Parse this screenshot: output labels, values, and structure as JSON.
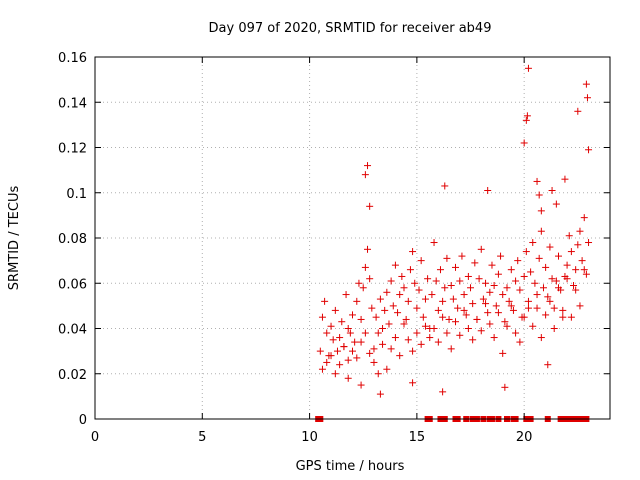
{
  "chart_data": {
    "type": "scatter",
    "title": "Day 097 of 2020, SRMTID for receiver ab49",
    "xlabel": "GPS time / hours",
    "ylabel": "SRMTID / TECUs",
    "xlim": [
      0,
      24
    ],
    "ylim": [
      0,
      0.16
    ],
    "x_ticks": [
      0,
      5,
      10,
      15,
      20
    ],
    "x_tick_labels": [
      "0",
      "5",
      "10",
      "15",
      "20"
    ],
    "y_ticks": [
      0,
      0.02,
      0.04,
      0.06,
      0.08,
      0.1,
      0.12,
      0.14,
      0.16
    ],
    "y_tick_labels": [
      "0",
      "0.02",
      "0.04",
      "0.06",
      "0.08",
      "0.1",
      "0.12",
      "0.14",
      "0.16"
    ],
    "grid": true,
    "marker": "+",
    "color": "#e00000",
    "series": [
      {
        "name": "SRMTID",
        "x": [
          10.5,
          10.6,
          10.7,
          10.8,
          10.9,
          11.0,
          11.1,
          11.2,
          11.3,
          11.4,
          11.5,
          11.6,
          11.7,
          11.8,
          11.9,
          12.0,
          12.1,
          12.2,
          12.3,
          12.4,
          12.5,
          12.6,
          12.7,
          12.8,
          12.9,
          13.0,
          13.1,
          13.2,
          13.3,
          13.4,
          13.5,
          13.6,
          13.7,
          13.8,
          13.9,
          14.0,
          14.1,
          14.2,
          14.3,
          14.4,
          14.5,
          14.6,
          14.7,
          14.8,
          14.9,
          15.0,
          15.1,
          15.2,
          15.3,
          15.4,
          15.5,
          15.6,
          15.7,
          15.8,
          15.9,
          16.0,
          16.1,
          16.2,
          16.3,
          16.4,
          16.5,
          16.6,
          16.7,
          16.8,
          16.9,
          17.0,
          17.1,
          17.2,
          17.3,
          17.4,
          17.5,
          17.6,
          17.7,
          17.8,
          17.9,
          18.0,
          18.1,
          18.2,
          18.3,
          18.4,
          18.5,
          18.6,
          18.7,
          18.8,
          18.9,
          19.0,
          19.1,
          19.2,
          19.3,
          19.4,
          19.5,
          19.6,
          19.7,
          19.8,
          19.9,
          20.0,
          20.1,
          20.2,
          20.3,
          20.4,
          20.5,
          20.6,
          20.7,
          20.8,
          20.9,
          21.0,
          21.1,
          21.2,
          21.3,
          21.4,
          21.5,
          21.6,
          21.7,
          21.8,
          21.9,
          22.0,
          22.1,
          22.2,
          22.3,
          22.4,
          22.5,
          22.6,
          22.7,
          22.8,
          22.9,
          23.0,
          10.6,
          10.8,
          11.0,
          11.2,
          11.4,
          11.6,
          11.8,
          12.0,
          12.2,
          12.4,
          12.6,
          12.8,
          13.0,
          13.2,
          13.4,
          13.6,
          13.8,
          14.0,
          14.2,
          14.4,
          14.6,
          14.8,
          15.0,
          15.2,
          15.4,
          15.6,
          15.8,
          16.0,
          16.2,
          16.4,
          16.6,
          16.8,
          17.0,
          17.2,
          17.4,
          17.6,
          17.8,
          18.0,
          18.2,
          18.4,
          18.6,
          18.8,
          19.0,
          19.2,
          19.4,
          19.6,
          19.8,
          20.0,
          20.2,
          20.4,
          20.6,
          20.8,
          21.0,
          21.2,
          21.4,
          21.6,
          21.8,
          22.0,
          22.2,
          22.4,
          22.6,
          22.8,
          12.6,
          12.7,
          12.8,
          20.1,
          20.15,
          20.2,
          22.5,
          22.9,
          22.95,
          23.0,
          16.3,
          18.3,
          20.0,
          20.6,
          20.7,
          20.8,
          21.3,
          21.5,
          21.9,
          16.2,
          11.8,
          12.4,
          13.3,
          14.8,
          19.1,
          21.1
        ],
        "y": [
          0.03,
          0.045,
          0.052,
          0.038,
          0.028,
          0.041,
          0.035,
          0.048,
          0.03,
          0.036,
          0.043,
          0.032,
          0.055,
          0.04,
          0.038,
          0.046,
          0.034,
          0.052,
          0.06,
          0.044,
          0.058,
          0.067,
          0.075,
          0.062,
          0.049,
          0.031,
          0.045,
          0.038,
          0.053,
          0.04,
          0.048,
          0.056,
          0.042,
          0.061,
          0.05,
          0.068,
          0.047,
          0.055,
          0.063,
          0.058,
          0.044,
          0.052,
          0.066,
          0.074,
          0.06,
          0.049,
          0.057,
          0.07,
          0.045,
          0.053,
          0.062,
          0.04,
          0.055,
          0.078,
          0.061,
          0.048,
          0.066,
          0.052,
          0.058,
          0.071,
          0.044,
          0.059,
          0.053,
          0.067,
          0.049,
          0.061,
          0.072,
          0.055,
          0.046,
          0.063,
          0.058,
          0.051,
          0.069,
          0.044,
          0.062,
          0.075,
          0.053,
          0.06,
          0.047,
          0.056,
          0.068,
          0.059,
          0.05,
          0.064,
          0.072,
          0.055,
          0.043,
          0.058,
          0.052,
          0.066,
          0.048,
          0.061,
          0.07,
          0.057,
          0.045,
          0.063,
          0.074,
          0.052,
          0.065,
          0.078,
          0.06,
          0.049,
          0.071,
          0.083,
          0.058,
          0.067,
          0.054,
          0.076,
          0.062,
          0.049,
          0.061,
          0.072,
          0.057,
          0.045,
          0.063,
          0.068,
          0.081,
          0.074,
          0.059,
          0.066,
          0.077,
          0.083,
          0.07,
          0.089,
          0.064,
          0.078,
          0.022,
          0.025,
          0.028,
          0.02,
          0.024,
          0.032,
          0.026,
          0.03,
          0.027,
          0.034,
          0.038,
          0.029,
          0.025,
          0.02,
          0.033,
          0.022,
          0.031,
          0.036,
          0.028,
          0.042,
          0.035,
          0.03,
          0.038,
          0.033,
          0.041,
          0.036,
          0.04,
          0.034,
          0.045,
          0.038,
          0.031,
          0.043,
          0.037,
          0.048,
          0.04,
          0.035,
          0.044,
          0.039,
          0.051,
          0.042,
          0.036,
          0.047,
          0.029,
          0.041,
          0.05,
          0.038,
          0.034,
          0.045,
          0.049,
          0.041,
          0.055,
          0.036,
          0.046,
          0.052,
          0.04,
          0.058,
          0.048,
          0.062,
          0.045,
          0.057,
          0.05,
          0.066,
          0.108,
          0.112,
          0.094,
          0.132,
          0.134,
          0.155,
          0.136,
          0.148,
          0.142,
          0.119,
          0.103,
          0.101,
          0.122,
          0.105,
          0.099,
          0.092,
          0.101,
          0.095,
          0.106,
          0.012,
          0.018,
          0.015,
          0.011,
          0.016,
          0.014,
          0.024
        ]
      }
    ],
    "zero_markers_x": [
      10.4,
      10.5,
      15.5,
      15.6,
      16.1,
      16.3,
      16.8,
      16.9,
      17.3,
      17.6,
      17.8,
      18.1,
      18.4,
      18.5,
      18.8,
      19.2,
      19.5,
      19.6,
      20.1,
      20.3,
      21.1,
      21.7,
      21.8,
      21.9,
      22.0,
      22.1,
      22.2,
      22.3,
      22.4,
      22.5,
      22.6,
      22.7,
      22.8,
      22.9
    ]
  }
}
